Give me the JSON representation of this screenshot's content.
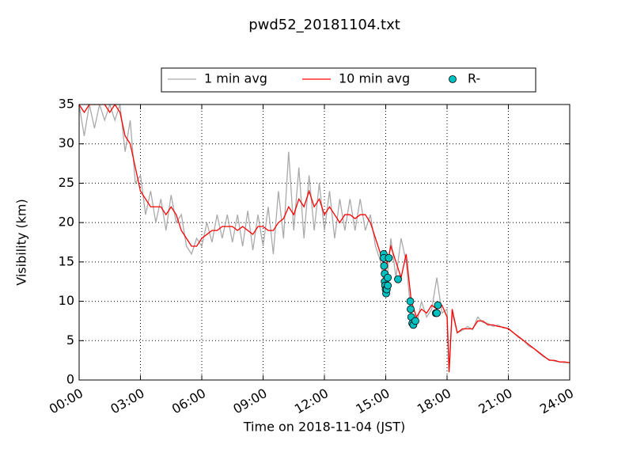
{
  "chart_data": {
    "type": "line",
    "title": "pwd52_20181104.txt",
    "x_label": "Time on 2018-11-04 (JST)",
    "y_label": "Visibility (km)",
    "xlim": [
      0,
      24
    ],
    "xticks": [
      {
        "value": 0,
        "label": "00:00"
      },
      {
        "value": 3,
        "label": "03:00"
      },
      {
        "value": 6,
        "label": "06:00"
      },
      {
        "value": 9,
        "label": "09:00"
      },
      {
        "value": 12,
        "label": "12:00"
      },
      {
        "value": 15,
        "label": "15:00"
      },
      {
        "value": 18,
        "label": "18:00"
      },
      {
        "value": 21,
        "label": "21:00"
      },
      {
        "value": 24,
        "label": "24:00"
      }
    ],
    "ylim": [
      0,
      35
    ],
    "yticks": [
      0,
      5,
      10,
      15,
      20,
      25,
      30,
      35
    ],
    "grid": true,
    "legend": "top",
    "series": [
      {
        "name": "1 min avg",
        "type": "line",
        "color": "#aaaaaa",
        "x": [
          0,
          0.25,
          0.5,
          0.75,
          1,
          1.25,
          1.5,
          1.75,
          2,
          2.25,
          2.5,
          2.75,
          3,
          3.25,
          3.5,
          3.75,
          4,
          4.25,
          4.5,
          4.75,
          5,
          5.25,
          5.5,
          5.75,
          6,
          6.25,
          6.5,
          6.75,
          7,
          7.25,
          7.5,
          7.75,
          8,
          8.25,
          8.5,
          8.75,
          9,
          9.25,
          9.5,
          9.75,
          10,
          10.25,
          10.5,
          10.75,
          11,
          11.25,
          11.5,
          11.75,
          12,
          12.25,
          12.5,
          12.75,
          13,
          13.25,
          13.5,
          13.75,
          14,
          14.25,
          14.5,
          14.75,
          15,
          15.25,
          15.5,
          15.75,
          16,
          16.25,
          16.5,
          16.75,
          17,
          17.25,
          17.5,
          17.75,
          18,
          18.1,
          18.25,
          18.5,
          18.75,
          19,
          19.25,
          19.5,
          19.75,
          20,
          20.25,
          20.5,
          20.75,
          21,
          21.25,
          21.5,
          21.75,
          22,
          22.25,
          22.5,
          22.75,
          23,
          23.25,
          23.5,
          23.75,
          24
        ],
        "values": [
          35,
          31,
          35,
          32,
          35,
          33,
          35,
          33,
          35,
          29,
          33,
          25,
          26,
          21,
          24,
          20,
          23,
          19,
          23.5,
          20,
          21,
          17,
          16,
          18,
          17,
          20,
          17.5,
          21,
          18,
          21,
          17.5,
          21,
          17,
          21.5,
          16.5,
          21,
          17,
          22,
          16,
          24,
          18,
          29,
          19,
          27,
          18,
          26,
          19,
          25,
          19,
          24,
          18,
          23,
          19,
          23,
          19,
          23,
          19,
          21,
          17,
          15,
          11,
          18,
          13,
          18,
          15,
          8,
          7,
          10,
          8,
          9,
          13,
          8.5,
          9,
          1,
          8.5,
          6,
          6.3,
          6.8,
          6.4,
          8,
          7.3,
          7.2,
          6.8,
          7,
          6.6,
          6.6,
          6,
          5.4,
          5,
          4.3,
          4,
          3.4,
          2.9,
          2.6,
          2.4,
          2.3,
          2.2,
          2.2
        ]
      },
      {
        "name": "10 min avg",
        "type": "line",
        "color": "#ff0000",
        "x": [
          0,
          0.25,
          0.5,
          0.75,
          1,
          1.25,
          1.5,
          1.75,
          2,
          2.25,
          2.5,
          2.75,
          3,
          3.25,
          3.5,
          3.75,
          4,
          4.25,
          4.5,
          4.75,
          5,
          5.25,
          5.5,
          5.75,
          6,
          6.25,
          6.5,
          6.75,
          7,
          7.25,
          7.5,
          7.75,
          8,
          8.25,
          8.5,
          8.75,
          9,
          9.25,
          9.5,
          9.75,
          10,
          10.25,
          10.5,
          10.75,
          11,
          11.25,
          11.5,
          11.75,
          12,
          12.25,
          12.5,
          12.75,
          13,
          13.25,
          13.5,
          13.75,
          14,
          14.25,
          14.5,
          14.75,
          15,
          15.25,
          15.5,
          15.75,
          16,
          16.25,
          16.5,
          16.75,
          17,
          17.25,
          17.5,
          17.75,
          18,
          18.1,
          18.25,
          18.5,
          18.75,
          19,
          19.25,
          19.5,
          19.75,
          20,
          20.25,
          20.5,
          20.75,
          21,
          21.25,
          21.5,
          21.75,
          22,
          22.25,
          22.5,
          22.75,
          23,
          23.25,
          23.5,
          23.75,
          24
        ],
        "values": [
          35,
          34,
          35,
          35,
          35,
          35,
          34,
          35,
          34,
          31,
          30,
          27,
          24,
          23,
          22,
          22,
          22,
          21,
          22,
          21,
          19,
          18,
          17,
          17,
          18,
          18.5,
          19,
          19,
          19.5,
          19.5,
          19.5,
          19,
          19.5,
          19,
          18.5,
          19.5,
          19.5,
          19,
          19,
          20,
          20.5,
          22,
          21,
          23,
          22,
          24,
          22,
          23,
          21,
          22,
          21,
          20,
          21,
          21,
          20.5,
          21,
          21,
          20,
          18,
          16,
          14,
          17,
          15,
          13,
          16,
          10,
          8,
          9,
          8.5,
          9.5,
          9,
          9.5,
          8,
          1,
          9,
          6,
          6.5,
          6.5,
          6.5,
          7.5,
          7.5,
          7,
          7,
          6.8,
          6.7,
          6.5,
          6,
          5.5,
          5,
          4.5,
          4,
          3.5,
          3,
          2.5,
          2.5,
          2.3,
          2.3,
          2.2
        ]
      },
      {
        "name": "R-",
        "type": "scatter",
        "color": "#00c0c0",
        "x": [
          14.9,
          14.9,
          14.92,
          14.95,
          14.95,
          14.97,
          15,
          15.02,
          15.05,
          15.1,
          15.1,
          15.15,
          15.6,
          16.2,
          16.22,
          16.25,
          16.3,
          16.35,
          16.45,
          17.45,
          17.5,
          17.55
        ],
        "values": [
          16,
          15.5,
          14.5,
          13.5,
          12.5,
          12,
          11.5,
          11,
          11.5,
          12,
          13,
          15.5,
          12.8,
          10,
          9,
          8,
          7.2,
          7,
          7.5,
          8.5,
          8.5,
          9.5
        ]
      }
    ]
  }
}
